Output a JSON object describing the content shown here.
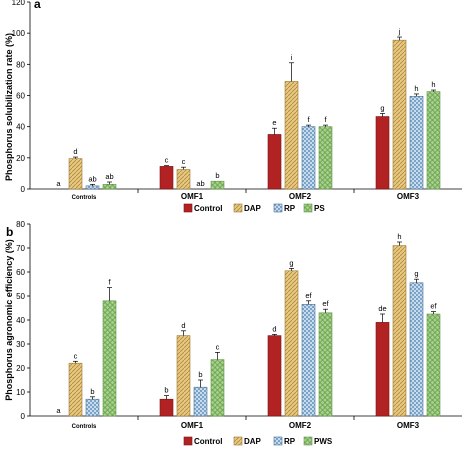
{
  "colors": {
    "control": "#b22222",
    "dap": "#e7c781",
    "rp": "#7aa3c8",
    "pws": "#a8d08d"
  },
  "chart_data": [
    {
      "panel": "a",
      "type": "bar",
      "ylabel": "Phosphorus solubilization rate (%)",
      "ylim": [
        0,
        120
      ],
      "yticks": [
        0,
        20,
        40,
        60,
        80,
        100,
        120
      ],
      "categories": [
        "Controls",
        "OMF1",
        "OMF2",
        "OMF3"
      ],
      "series": [
        {
          "name": "Control",
          "color_key": "control",
          "values": [
            0,
            14.5,
            35,
            46.5
          ],
          "errors": [
            0,
            0.5,
            4,
            2
          ],
          "letters": [
            "a",
            "c",
            "e",
            "g"
          ]
        },
        {
          "name": "DAP",
          "color_key": "dap",
          "values": [
            19.5,
            12.5,
            69,
            95.5
          ],
          "errors": [
            1,
            1.5,
            12,
            2
          ],
          "letters": [
            "d",
            "c",
            "i",
            "j"
          ]
        },
        {
          "name": "RP",
          "color_key": "rp",
          "values": [
            2,
            0,
            40,
            59.5
          ],
          "errors": [
            1,
            0,
            1,
            1.5
          ],
          "letters": [
            "ab",
            "ab",
            "f",
            "h"
          ]
        },
        {
          "name": "PS",
          "color_key": "pws",
          "values": [
            3,
            5,
            40,
            62.5
          ],
          "errors": [
            1.5,
            0,
            1,
            1
          ],
          "letters": [
            "ab",
            "b",
            "f",
            "h"
          ]
        }
      ],
      "legend_position": "bottom"
    },
    {
      "panel": "b",
      "type": "bar",
      "ylabel": "Phosphorus agronomic efficiency (%)",
      "ylim": [
        0,
        80
      ],
      "yticks": [
        0,
        10,
        20,
        30,
        40,
        50,
        60,
        70,
        80
      ],
      "categories": [
        "Controls",
        "OMF1",
        "OMF2",
        "OMF3"
      ],
      "series": [
        {
          "name": "Control",
          "color_key": "control",
          "values": [
            0,
            7,
            33.5,
            39
          ],
          "errors": [
            0,
            1.5,
            0.5,
            3.5
          ],
          "letters": [
            "a",
            "b",
            "d",
            "de"
          ]
        },
        {
          "name": "DAP",
          "color_key": "dap",
          "values": [
            22,
            33.5,
            60.5,
            71
          ],
          "errors": [
            0.8,
            2,
            1,
            1.5
          ],
          "letters": [
            "c",
            "d",
            "g",
            "h"
          ]
        },
        {
          "name": "RP",
          "color_key": "rp",
          "values": [
            7,
            12,
            46.5,
            55.5
          ],
          "errors": [
            1,
            3,
            1.5,
            1.5
          ],
          "letters": [
            "b",
            "b",
            "ef",
            "g"
          ]
        },
        {
          "name": "PWS",
          "color_key": "pws",
          "values": [
            48,
            23.5,
            43,
            42.5
          ],
          "errors": [
            5.5,
            3,
            1.5,
            1
          ],
          "letters": [
            "f",
            "c",
            "ef",
            "ef"
          ]
        }
      ],
      "legend_position": "bottom"
    }
  ]
}
